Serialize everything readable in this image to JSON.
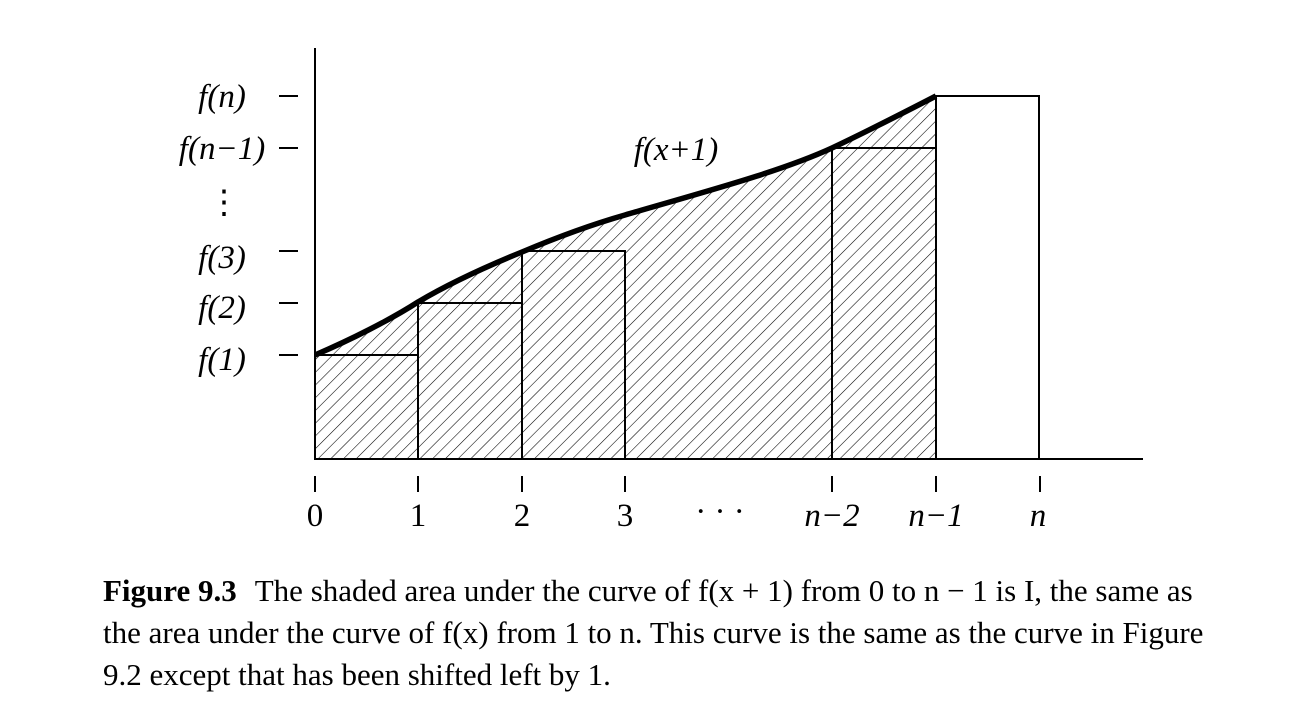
{
  "figure": {
    "x_tick_labels": [
      "0",
      "1",
      "2",
      "3",
      "n−2",
      "n−1",
      "n"
    ],
    "x_ellipsis": "· · ·",
    "y_tick_labels": [
      "f(n)",
      "f(n−1)",
      "f(3)",
      "f(2)",
      "f(1)"
    ],
    "y_ellipsis": "⋮",
    "curve_label": "f(x+1)"
  },
  "caption": {
    "label": "Figure 9.3",
    "text": "The shaded area under the curve of f(x + 1) from 0 to n − 1 is I, the same as the area under the curve of f(x) from 1 to n. This curve is the same as the curve in Figure 9.2 except that has been shifted left by 1."
  }
}
